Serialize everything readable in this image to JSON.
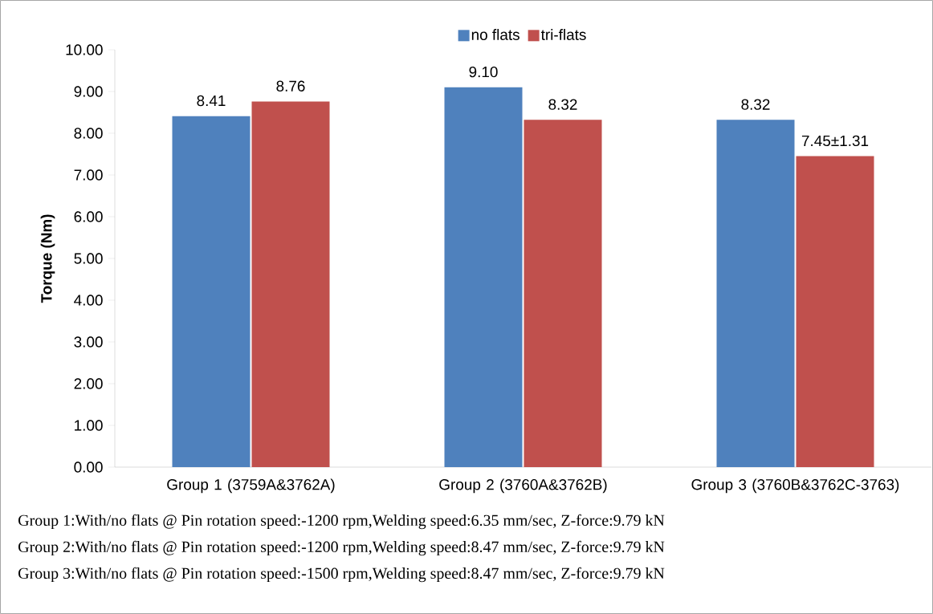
{
  "chart_data": {
    "type": "bar",
    "ylabel": "Torque (Nm)",
    "categories": [
      "Group 1 (3759A&3762A)",
      "Group 2 (3760A&3762B)",
      "Group 3 (3760B&3762C-3763)"
    ],
    "series": [
      {
        "name": "no flats",
        "color": "#4f81bd",
        "values": [
          8.41,
          9.1,
          8.32
        ],
        "value_labels": [
          "8.41",
          "9.10",
          "8.32"
        ]
      },
      {
        "name": "tri-flats",
        "color": "#c0504d",
        "values": [
          8.76,
          8.32,
          7.45
        ],
        "value_labels": [
          "8.76",
          "8.32",
          "7.45±1.31"
        ]
      }
    ],
    "ylim": [
      0,
      10
    ],
    "yticks": [
      {
        "value": 0,
        "label": "0.00"
      },
      {
        "value": 1,
        "label": "1.00"
      },
      {
        "value": 2,
        "label": "2.00"
      },
      {
        "value": 3,
        "label": "3.00"
      },
      {
        "value": 4,
        "label": "4.00"
      },
      {
        "value": 5,
        "label": "5.00"
      },
      {
        "value": 6,
        "label": "6.00"
      },
      {
        "value": 7,
        "label": "7.00"
      },
      {
        "value": 8,
        "label": "8.00"
      },
      {
        "value": 9,
        "label": "9.00"
      },
      {
        "value": 10,
        "label": "10.00"
      }
    ],
    "legend": "top",
    "annotations": [
      "Group 1:With/no flats @ Pin rotation speed:-1200 rpm,Welding speed:6.35 mm/sec, Z-force:9.79 kN",
      "Group 2:With/no flats @ Pin rotation speed:-1200 rpm,Welding speed:8.47 mm/sec, Z-force:9.79 kN",
      "Group 3:With/no flats @ Pin rotation speed:-1500 rpm,Welding speed:8.47 mm/sec, Z-force:9.79 kN"
    ]
  }
}
